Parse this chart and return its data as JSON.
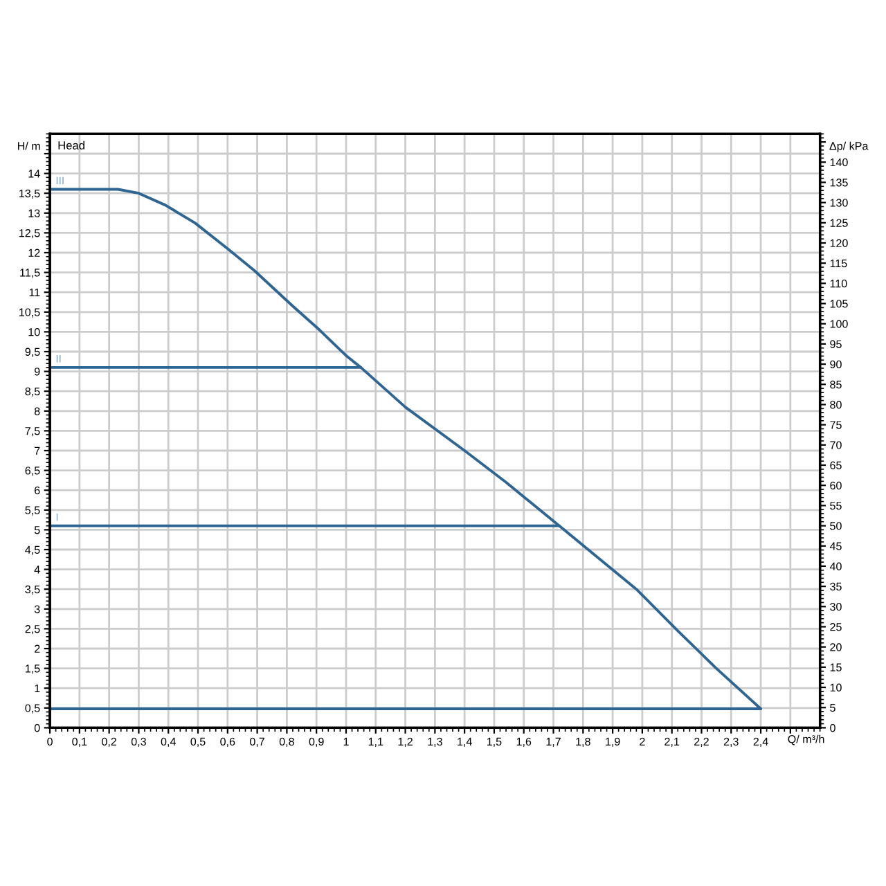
{
  "chart_data": {
    "type": "line",
    "xlabel": "Q/ m³/h",
    "ylabel": "H/ m",
    "y2label": "Δp/ kPa",
    "annotations": [
      "Head"
    ],
    "series": [
      {
        "name": "III",
        "color": "#2f6592",
        "x": [
          0,
          0.23,
          0.3,
          0.39,
          0.49,
          0.6,
          0.69,
          0.82,
          0.91,
          1.0,
          1.05,
          1.2,
          1.4,
          1.54,
          1.72,
          1.85,
          1.98,
          2.12,
          2.25,
          2.4
        ],
        "values": [
          13.6,
          13.6,
          13.5,
          13.2,
          12.75,
          12.1,
          11.55,
          10.65,
          10.05,
          9.4,
          9.1,
          8.1,
          7.0,
          6.2,
          5.1,
          4.3,
          3.5,
          2.45,
          1.5,
          0.48
        ]
      },
      {
        "name": "II",
        "color": "#2f6592",
        "x": [
          0,
          1.05
        ],
        "values": [
          9.1,
          9.1
        ]
      },
      {
        "name": "I",
        "color": "#2f6592",
        "x": [
          0,
          1.72
        ],
        "values": [
          5.1,
          5.1
        ]
      },
      {
        "color": "#2f6592",
        "x": [
          0,
          2.4
        ],
        "values": [
          0.48,
          0.48
        ]
      }
    ],
    "xlim": [
      0,
      2.6
    ],
    "xticks": [
      0,
      {
        "value": 0.1,
        "label": "0,1"
      },
      {
        "value": 0.2,
        "label": "0,2"
      },
      {
        "value": 0.3,
        "label": "0,3"
      },
      {
        "value": 0.4,
        "label": "0,4"
      },
      {
        "value": 0.5,
        "label": "0,5"
      },
      {
        "value": 0.6,
        "label": "0,6"
      },
      {
        "value": 0.7,
        "label": "0,7"
      },
      {
        "value": 0.8,
        "label": "0,8"
      },
      {
        "value": 0.9,
        "label": "0,9"
      },
      1,
      {
        "value": 1.1,
        "label": "1,1"
      },
      {
        "value": 1.2,
        "label": "1,2"
      },
      {
        "value": 1.3,
        "label": "1,3"
      },
      {
        "value": 1.4,
        "label": "1,4"
      },
      {
        "value": 1.5,
        "label": "1,5"
      },
      {
        "value": 1.6,
        "label": "1,6"
      },
      {
        "value": 1.7,
        "label": "1,7"
      },
      {
        "value": 1.8,
        "label": "1,8"
      },
      {
        "value": 1.9,
        "label": "1,9"
      },
      2,
      {
        "value": 2.1,
        "label": "2,1"
      },
      {
        "value": 2.2,
        "label": "2,2"
      },
      {
        "value": 2.3,
        "label": "2,3"
      },
      {
        "value": 2.4,
        "label": "2,4"
      },
      {
        "value": 2.5,
        "label": null
      }
    ],
    "ylim": [
      0,
      15
    ],
    "yticks": [
      0,
      {
        "value": 0.5,
        "label": "0,5"
      },
      1,
      {
        "value": 1.5,
        "label": "1,5"
      },
      2,
      {
        "value": 2.5,
        "label": "2,5"
      },
      3,
      {
        "value": 3.5,
        "label": "3,5"
      },
      4,
      {
        "value": 4.5,
        "label": "4,5"
      },
      5,
      {
        "value": 5.5,
        "label": "5,5"
      },
      6,
      {
        "value": 6.5,
        "label": "6,5"
      },
      7,
      {
        "value": 7.5,
        "label": "7,5"
      },
      8,
      {
        "value": 8.5,
        "label": "8,5"
      },
      9,
      {
        "value": 9.5,
        "label": "9,5"
      },
      10,
      {
        "value": 10.5,
        "label": "10,5"
      },
      11,
      {
        "value": 11.5,
        "label": "11,5"
      },
      12,
      {
        "value": 12.5,
        "label": "12,5"
      },
      13,
      {
        "value": 13.5,
        "label": "13,5"
      },
      14,
      {
        "value": 14.5,
        "label": null
      }
    ],
    "y2lim": [
      0,
      147
    ],
    "y2ticks": [
      0,
      5,
      10,
      15,
      20,
      25,
      30,
      35,
      40,
      45,
      50,
      55,
      60,
      65,
      70,
      75,
      80,
      85,
      90,
      95,
      100,
      105,
      110,
      115,
      120,
      125,
      130,
      135,
      140,
      {
        "value": 145,
        "label": null
      }
    ],
    "grid": true,
    "line_style": "solid"
  }
}
